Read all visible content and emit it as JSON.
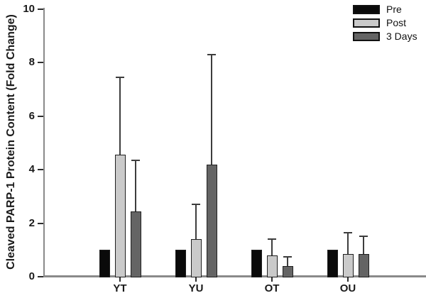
{
  "figure": {
    "background": "#ffffff"
  },
  "chart_data": {
    "type": "bar",
    "title": "",
    "xlabel": "",
    "ylabel": "Cleaved PARP-1 Protein Content (Fold Change)",
    "categories": [
      "YT",
      "YU",
      "OT",
      "OU"
    ],
    "series": [
      {
        "name": "Pre",
        "color": "#0a0a0a",
        "values": [
          1.0,
          1.0,
          1.0,
          1.0
        ],
        "errors_plus": [
          0,
          0,
          0,
          0
        ]
      },
      {
        "name": "Post",
        "color": "#cacaca",
        "values": [
          4.55,
          1.4,
          0.8,
          0.85
        ],
        "errors_plus": [
          2.9,
          1.3,
          0.6,
          0.8
        ]
      },
      {
        "name": "3 Days",
        "color": "#646464",
        "values": [
          2.45,
          4.2,
          0.4,
          0.85
        ],
        "errors_plus": [
          1.9,
          4.1,
          0.35,
          0.65
        ]
      }
    ],
    "yticks": [
      0,
      2,
      4,
      6,
      8,
      10
    ],
    "ylim": [
      0,
      10
    ],
    "grid": false,
    "legend_position": "top-right",
    "error_bars": "upper-only-with-caps",
    "colors": {
      "axis_line": "#8a8a8a",
      "tick_mark": "#2e2e2e",
      "error_bar": "#3d3d3d",
      "bar_border": "#1f1f1f",
      "text": "#1a1a1a"
    }
  }
}
